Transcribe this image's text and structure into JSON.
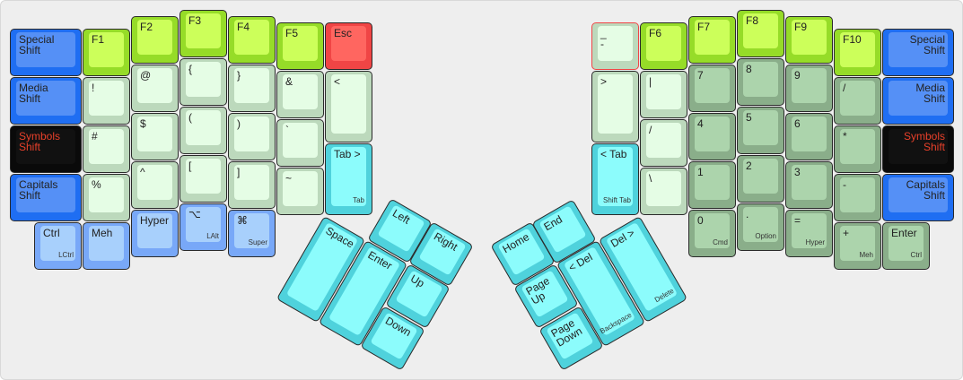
{
  "colors": {
    "shift": "#1f6ef2",
    "symbols_text": "#e8402a",
    "fkey": "#ccff5a",
    "symbol_key": "#e5fde5",
    "modifier": "#a8d0fc",
    "thumb": "#8cfcfc",
    "numpad": "#acd4ac",
    "esc": "#ff6660"
  },
  "left_keys": [
    {
      "label": "Special\nShift",
      "sub": "",
      "style": "blue"
    },
    {
      "label": "Media\nShift",
      "sub": "",
      "style": "blue"
    },
    {
      "label": "Symbols\nShift",
      "sub": "",
      "style": "black"
    },
    {
      "label": "Capitals\nShift",
      "sub": "",
      "style": "blue"
    },
    {
      "label": "Ctrl",
      "sub": "LCtrl",
      "style": "mod"
    },
    {
      "label": "F1",
      "sub": "",
      "style": "fkey"
    },
    {
      "label": "!",
      "sub": "",
      "style": "light"
    },
    {
      "label": "#",
      "sub": "",
      "style": "light"
    },
    {
      "label": "%",
      "sub": "",
      "style": "light"
    },
    {
      "label": "Meh",
      "sub": "",
      "style": "mod"
    },
    {
      "label": "F2",
      "sub": "",
      "style": "fkey"
    },
    {
      "label": "@",
      "sub": "",
      "style": "light"
    },
    {
      "label": "$",
      "sub": "",
      "style": "light"
    },
    {
      "label": "^",
      "sub": "",
      "style": "light"
    },
    {
      "label": "Hyper",
      "sub": "",
      "style": "mod"
    },
    {
      "label": "F3",
      "sub": "",
      "style": "fkey"
    },
    {
      "label": "{",
      "sub": "",
      "style": "light"
    },
    {
      "label": "(",
      "sub": "",
      "style": "light"
    },
    {
      "label": "[",
      "sub": "",
      "style": "light"
    },
    {
      "label": "⌥",
      "sub": "LAlt",
      "style": "mod"
    },
    {
      "label": "F4",
      "sub": "",
      "style": "fkey"
    },
    {
      "label": "}",
      "sub": "",
      "style": "light"
    },
    {
      "label": ")",
      "sub": "",
      "style": "light"
    },
    {
      "label": "]",
      "sub": "",
      "style": "light"
    },
    {
      "label": "⌘",
      "sub": "Super",
      "style": "mod"
    },
    {
      "label": "F5",
      "sub": "",
      "style": "fkey"
    },
    {
      "label": "&",
      "sub": "",
      "style": "light"
    },
    {
      "label": "`",
      "sub": "",
      "style": "light"
    },
    {
      "label": "~",
      "sub": "",
      "style": "light"
    },
    {
      "label": "Esc",
      "sub": "",
      "style": "esc"
    },
    {
      "label": "<",
      "sub": "",
      "style": "light"
    },
    {
      "label": "Tab >",
      "sub": "Tab",
      "style": "cyan"
    }
  ],
  "left_thumb": [
    {
      "label": "Left",
      "sub": "",
      "style": "cyan"
    },
    {
      "label": "Right",
      "sub": "",
      "style": "cyan"
    },
    {
      "label": "Space",
      "sub": "",
      "style": "cyan"
    },
    {
      "label": "Enter",
      "sub": "",
      "style": "cyan"
    },
    {
      "label": "Up",
      "sub": "",
      "style": "cyan"
    },
    {
      "label": "Down",
      "sub": "",
      "style": "cyan"
    }
  ],
  "right_keys": [
    {
      "label": "_\n-",
      "sub": "",
      "style": "light"
    },
    {
      "label": ">",
      "sub": "",
      "style": "light"
    },
    {
      "label": "< Tab",
      "sub": "Shift Tab",
      "style": "cyan"
    },
    {
      "label": "F6",
      "sub": "",
      "style": "fkey"
    },
    {
      "label": "|",
      "sub": "",
      "style": "light"
    },
    {
      "label": "/",
      "sub": "",
      "style": "light"
    },
    {
      "label": "\\",
      "sub": "",
      "style": "light"
    },
    {
      "label": "F7",
      "sub": "",
      "style": "fkey"
    },
    {
      "label": "7",
      "sub": "",
      "style": "num"
    },
    {
      "label": "4",
      "sub": "",
      "style": "num"
    },
    {
      "label": "1",
      "sub": "",
      "style": "num"
    },
    {
      "label": "0",
      "sub": "Cmd",
      "style": "num"
    },
    {
      "label": "F8",
      "sub": "",
      "style": "fkey"
    },
    {
      "label": "8",
      "sub": "",
      "style": "num"
    },
    {
      "label": "5",
      "sub": "",
      "style": "num"
    },
    {
      "label": "2",
      "sub": "",
      "style": "num"
    },
    {
      "label": ".",
      "sub": "Option",
      "style": "num"
    },
    {
      "label": "F9",
      "sub": "",
      "style": "fkey"
    },
    {
      "label": "9",
      "sub": "",
      "style": "num"
    },
    {
      "label": "6",
      "sub": "",
      "style": "num"
    },
    {
      "label": "3",
      "sub": "",
      "style": "num"
    },
    {
      "label": "=",
      "sub": "Hyper",
      "style": "num"
    },
    {
      "label": "F10",
      "sub": "",
      "style": "fkey"
    },
    {
      "label": "/",
      "sub": "",
      "style": "num"
    },
    {
      "label": "*",
      "sub": "",
      "style": "num"
    },
    {
      "label": "-",
      "sub": "",
      "style": "num"
    },
    {
      "label": "+",
      "sub": "Meh",
      "style": "num"
    },
    {
      "label": "Special\nShift",
      "sub": "",
      "style": "blue"
    },
    {
      "label": "Media\nShift",
      "sub": "",
      "style": "blue"
    },
    {
      "label": "Symbols\nShift",
      "sub": "",
      "style": "black"
    },
    {
      "label": "Capitals\nShift",
      "sub": "",
      "style": "blue"
    },
    {
      "label": "Enter",
      "sub": "Ctrl",
      "style": "num"
    }
  ],
  "right_thumb": [
    {
      "label": "End",
      "sub": "",
      "style": "cyan"
    },
    {
      "label": "Home",
      "sub": "",
      "style": "cyan"
    },
    {
      "label": "Del >",
      "sub": "Delete",
      "style": "cyan"
    },
    {
      "label": "< Del",
      "sub": "Backspace",
      "style": "cyan"
    },
    {
      "label": "Page\nUp",
      "sub": "",
      "style": "cyan"
    },
    {
      "label": "Page\nDown",
      "sub": "",
      "style": "cyan"
    }
  ]
}
